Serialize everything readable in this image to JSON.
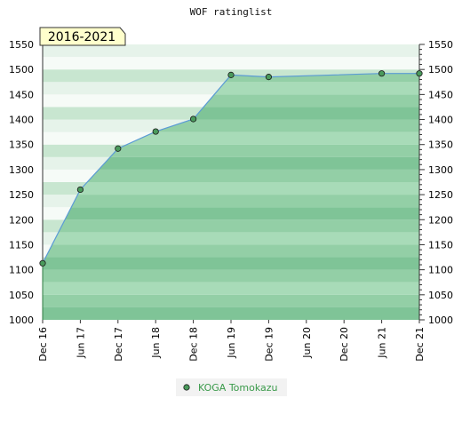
{
  "chart_data": {
    "type": "area",
    "title": "WOF ratinglist",
    "period_label": "2016-2021",
    "xlabel": "",
    "ylabel": "",
    "x_categories": [
      "Dec 16",
      "Jun 17",
      "Dec 17",
      "Jun 18",
      "Dec 18",
      "Jun 19",
      "Dec 19",
      "Jun 20",
      "Dec 20",
      "Jun 21",
      "Dec 21"
    ],
    "ylim": [
      1000,
      1550
    ],
    "y_ticks": [
      1000,
      1050,
      1100,
      1150,
      1200,
      1250,
      1300,
      1350,
      1400,
      1450,
      1500,
      1550
    ],
    "y_axis_both_sides": true,
    "grid": false,
    "legend_position": "bottom-center",
    "series": [
      {
        "name": "KOGA Tomokazu",
        "points": [
          {
            "x": "Dec 16",
            "y": 1113
          },
          {
            "x": "Jun 17",
            "y": 1260
          },
          {
            "x": "Dec 17",
            "y": 1342
          },
          {
            "x": "Jun 18",
            "y": 1376
          },
          {
            "x": "Dec 18",
            "y": 1401
          },
          {
            "x": "Jun 19",
            "y": 1489
          },
          {
            "x": "Dec 19",
            "y": 1485
          },
          {
            "x": "Jun 21",
            "y": 1492
          },
          {
            "x": "Dec 21",
            "y": 1492
          }
        ]
      }
    ],
    "colors": {
      "line": "#5b9bd5",
      "marker_fill": "#4a9a5c",
      "legend_text": "#3a9a4a",
      "legend_box": "#f2f2f2",
      "band_pale": "#e6f3ea",
      "band_light": "#c8e6d0",
      "band_white": "#f6fbf7",
      "fill_light": "#a8dbb8",
      "fill_mid": "#93cfa6",
      "fill_dark": "#7fc497",
      "label_box_fill": "#ffffcc",
      "label_box_stroke": "#333333"
    }
  }
}
